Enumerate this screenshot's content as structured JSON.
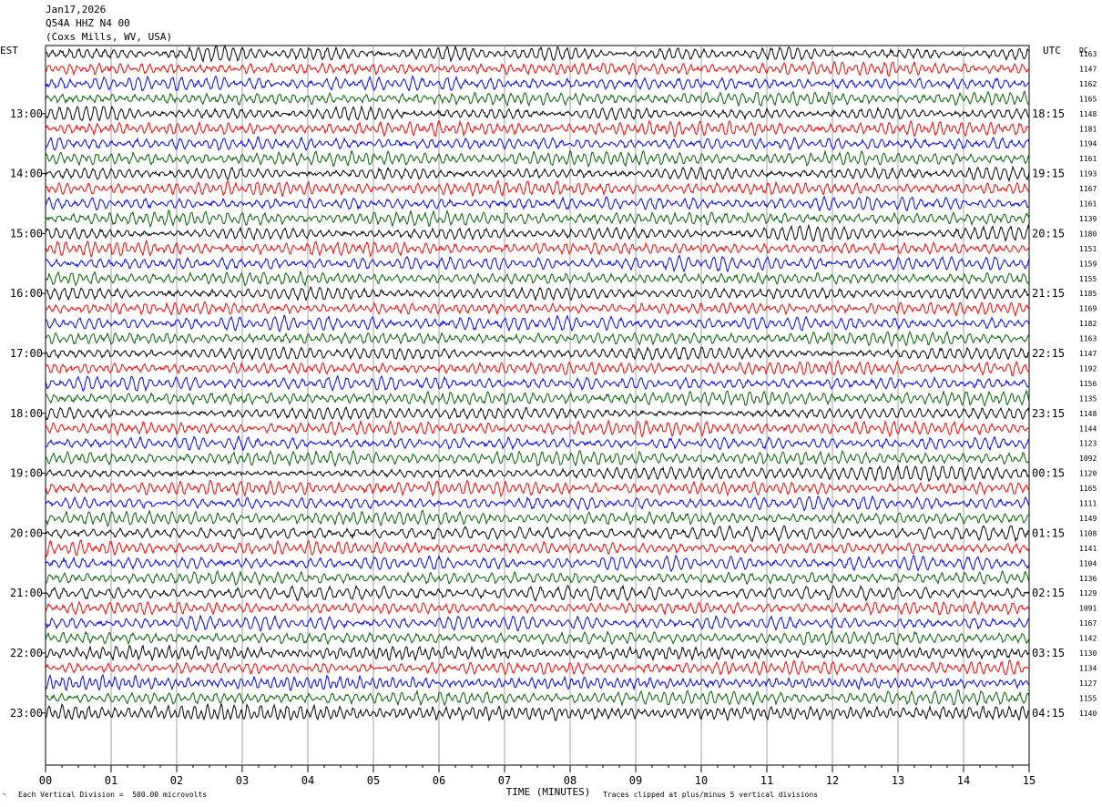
{
  "header": {
    "date": "Jan17,2026",
    "station": "Q54A HHZ N4 00",
    "location": "(Coxs Mills, WV, USA)"
  },
  "labels": {
    "left_timezone": "EST",
    "right_timezone": "UTC",
    "dc_header": "DC",
    "x_axis_title": "TIME (MINUTES)",
    "scale_note": "Each Vertical Division =  500.00 microvolts",
    "clip_note": "Traces clipped at plus/minus 5 vertical divisions"
  },
  "chart_data": {
    "type": "line",
    "title": "Jan17,2026",
    "xlabel": "TIME (MINUTES)",
    "ylabel": "",
    "xlim": [
      0,
      15
    ],
    "x_ticks": [
      "00",
      "01",
      "02",
      "03",
      "04",
      "05",
      "06",
      "07",
      "08",
      "09",
      "10",
      "11",
      "12",
      "13",
      "14",
      "15"
    ],
    "trace_count": 45,
    "traces_per_hour": 4,
    "trace_colors": [
      "#000000",
      "#ff0000",
      "#0000ff",
      "#006400"
    ],
    "left_time_labels": [
      "13:00",
      "14:00",
      "15:00",
      "16:00",
      "17:00",
      "18:00",
      "19:00",
      "20:00",
      "21:00",
      "22:00",
      "23:00"
    ],
    "right_time_labels": [
      "18:15",
      "19:15",
      "20:15",
      "21:15",
      "22:15",
      "23:15",
      "00:15",
      "01:15",
      "02:15",
      "03:15",
      "04:15"
    ],
    "dc_offsets": [
      "1163",
      "1147",
      "1162",
      "1165",
      "1148",
      "1181",
      "1194",
      "1161",
      "1193",
      "1167",
      "1161",
      "1139",
      "1180",
      "1151",
      "1159",
      "1155",
      "1185",
      "1169",
      "1182",
      "1163",
      "1147",
      "1192",
      "1156",
      "1135",
      "1148",
      "1144",
      "1123",
      "1092",
      "1120",
      "1165",
      "1111",
      "1149",
      "1108",
      "1141",
      "1104",
      "1136",
      "1129",
      "1091",
      "1167",
      "1142",
      "1130",
      "1134",
      "1127",
      "1155",
      "1140"
    ],
    "vertical_division_microvolts": 500.0,
    "clip_divisions": 5
  }
}
